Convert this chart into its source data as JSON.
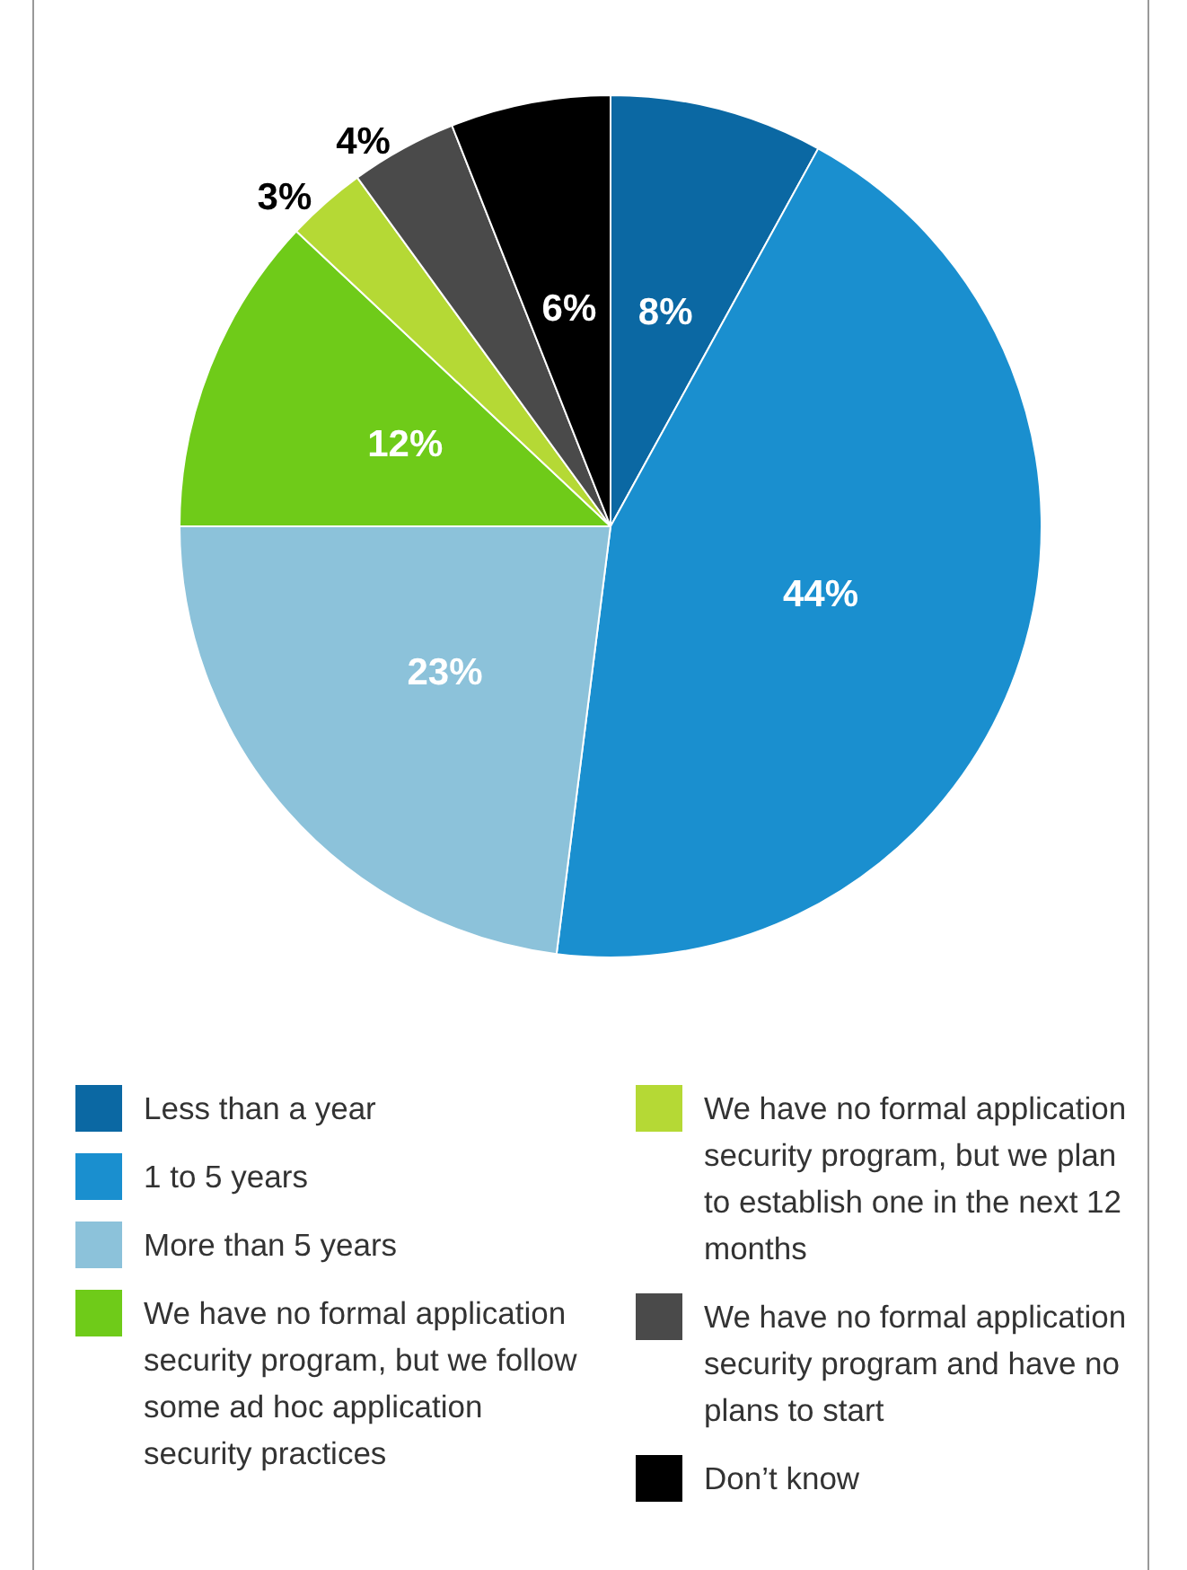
{
  "chart_data": {
    "type": "pie",
    "categories": [
      "Less than a year",
      "1 to 5 years",
      "More than 5 years",
      "We have no formal application security program, but we follow some ad hoc application security practices",
      "We have no formal application security program, but we plan to establish one in the next 12 months",
      "We have no formal application security program and have no plans to start",
      "Don’t know"
    ],
    "values": [
      8,
      44,
      23,
      12,
      3,
      4,
      6
    ],
    "colors": [
      "#0b68a3",
      "#1a8fcf",
      "#8cc2da",
      "#6fcb19",
      "#b5d935",
      "#4a4a4a",
      "#000000"
    ],
    "value_labels": [
      "8%",
      "44%",
      "23%",
      "12%",
      "3%",
      "4%",
      "6%"
    ],
    "legend": "bottom"
  }
}
